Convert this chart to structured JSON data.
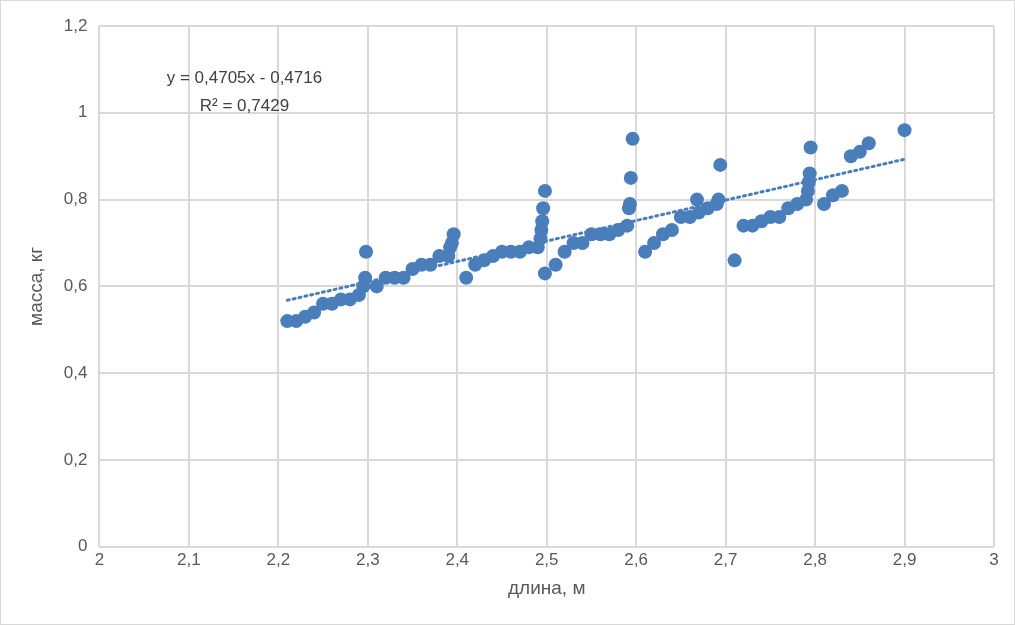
{
  "chart_data": {
    "type": "scatter",
    "xlabel": "длина, м",
    "ylabel": "масса, кг",
    "xlim": [
      2,
      3
    ],
    "ylim": [
      0,
      1.2
    ],
    "xticks": [
      2,
      {
        "value": 2.1,
        "label": "2,1"
      },
      {
        "value": 2.2,
        "label": "2,2"
      },
      {
        "value": 2.3,
        "label": "2,3"
      },
      {
        "value": 2.4,
        "label": "2,4"
      },
      {
        "value": 2.5,
        "label": "2,5"
      },
      {
        "value": 2.6,
        "label": "2,6"
      },
      {
        "value": 2.7,
        "label": "2,7"
      },
      {
        "value": 2.8,
        "label": "2,8"
      },
      {
        "value": 2.9,
        "label": "2,9"
      },
      3
    ],
    "yticks": [
      0,
      {
        "value": 0.2,
        "label": "0,2"
      },
      {
        "value": 0.4,
        "label": "0,4"
      },
      {
        "value": 0.6,
        "label": "0,6"
      },
      {
        "value": 0.8,
        "label": "0,8"
      },
      1,
      {
        "value": 1.2,
        "label": "1,2"
      }
    ],
    "grid": true,
    "legend": false,
    "marker": "circle",
    "annotations": [
      "y = 0,4705x - 0,4716",
      "R² = 0,7429"
    ],
    "series": [
      {
        "color": "#4a7ebb",
        "x": [
          2.21,
          2.22,
          2.23,
          2.24,
          2.25,
          2.26,
          2.27,
          2.28,
          2.29,
          2.295,
          2.297,
          2.298,
          2.31,
          2.32,
          2.33,
          2.34,
          2.35,
          2.36,
          2.37,
          2.38,
          2.39,
          2.392,
          2.394,
          2.396,
          2.41,
          2.42,
          2.43,
          2.44,
          2.45,
          2.46,
          2.47,
          2.48,
          2.49,
          2.493,
          2.494,
          2.495,
          2.496,
          2.498,
          2.498,
          2.51,
          2.52,
          2.53,
          2.54,
          2.55,
          2.56,
          2.57,
          2.58,
          2.59,
          2.592,
          2.593,
          2.594,
          2.596,
          2.61,
          2.62,
          2.63,
          2.64,
          2.65,
          2.66,
          2.67,
          2.668,
          2.68,
          2.69,
          2.692,
          2.694,
          2.71,
          2.72,
          2.73,
          2.74,
          2.75,
          2.76,
          2.77,
          2.78,
          2.79,
          2.792,
          2.793,
          2.794,
          2.795,
          2.81,
          2.82,
          2.83,
          2.84,
          2.85,
          2.86,
          2.9
        ],
        "values": [
          0.52,
          0.52,
          0.53,
          0.54,
          0.56,
          0.56,
          0.57,
          0.57,
          0.58,
          0.6,
          0.62,
          0.68,
          0.6,
          0.62,
          0.62,
          0.62,
          0.64,
          0.65,
          0.65,
          0.67,
          0.67,
          0.69,
          0.7,
          0.72,
          0.62,
          0.65,
          0.66,
          0.67,
          0.68,
          0.68,
          0.68,
          0.69,
          0.69,
          0.71,
          0.73,
          0.75,
          0.78,
          0.82,
          0.63,
          0.65,
          0.68,
          0.7,
          0.7,
          0.72,
          0.72,
          0.72,
          0.73,
          0.74,
          0.78,
          0.79,
          0.85,
          0.94,
          0.68,
          0.7,
          0.72,
          0.73,
          0.76,
          0.76,
          0.77,
          0.8,
          0.78,
          0.79,
          0.8,
          0.88,
          0.66,
          0.74,
          0.74,
          0.75,
          0.76,
          0.76,
          0.78,
          0.79,
          0.8,
          0.82,
          0.84,
          0.86,
          0.92,
          0.79,
          0.81,
          0.82,
          0.9,
          0.91,
          0.93,
          0.96
        ]
      },
      {
        "type": "line",
        "color": "#4a7ebb",
        "line_style": "dotted",
        "marker": "none",
        "x": [
          2.21,
          2.9
        ],
        "values": [
          0.568,
          0.893
        ]
      }
    ]
  }
}
